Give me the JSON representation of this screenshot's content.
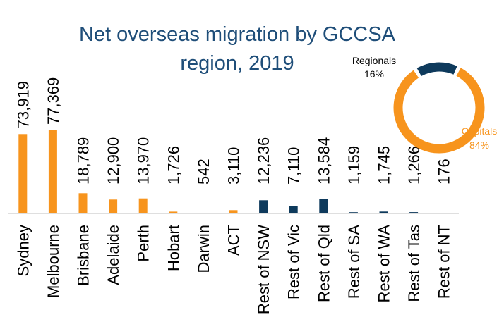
{
  "chart_data": [
    {
      "type": "bar",
      "title": "Net overseas migration by GCCSA region, 2019",
      "title_lines": [
        "Net overseas migration by GCCSA",
        "region, 2019"
      ],
      "xlabel": "",
      "ylabel": "",
      "ylim": [
        0,
        80000
      ],
      "grid": false,
      "categories": [
        "Sydney",
        "Melbourne",
        "Brisbane",
        "Adelaide",
        "Perth",
        "Hobart",
        "Darwin",
        "ACT",
        "Rest of NSW",
        "Rest of Vic",
        "Rest of Qld",
        "Rest of SA",
        "Rest of WA",
        "Rest of Tas",
        "Rest of NT"
      ],
      "values": [
        73919,
        77369,
        18789,
        12900,
        13970,
        1726,
        542,
        3110,
        12236,
        7110,
        13584,
        1159,
        1745,
        1266,
        176
      ],
      "value_labels": [
        "73,919",
        "77,369",
        "18,789",
        "12,900",
        "13,970",
        "1,726",
        "542",
        "3,110",
        "12,236",
        "7,110",
        "13,584",
        "1,159",
        "1,745",
        "1,266",
        "176"
      ],
      "groups": [
        "Capital",
        "Capital",
        "Capital",
        "Capital",
        "Capital",
        "Capital",
        "Capital",
        "Capital",
        "Regional",
        "Regional",
        "Regional",
        "Regional",
        "Regional",
        "Regional",
        "Regional"
      ]
    },
    {
      "type": "pie",
      "donut": true,
      "slices": [
        {
          "name": "Capitals",
          "value": 84,
          "label": "84%"
        },
        {
          "name": "Regionals",
          "value": 16,
          "label": "16%"
        }
      ]
    }
  ],
  "colors": {
    "capital": "#F7941D",
    "regional": "#0E3A5C",
    "title": "#1F4E79",
    "axis": "#BFBFBF"
  }
}
